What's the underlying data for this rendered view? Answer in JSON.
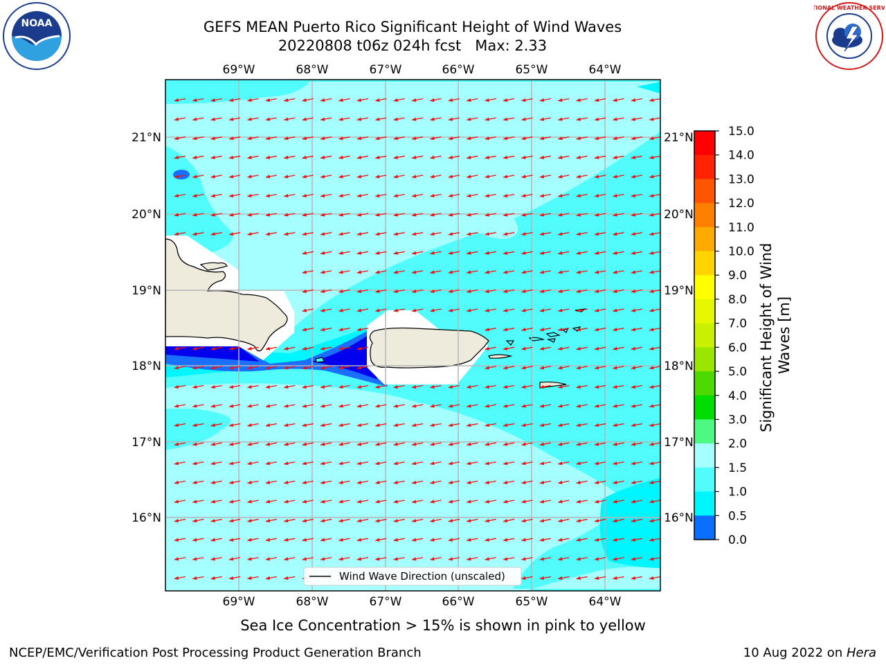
{
  "title": {
    "line1": "GEFS MEAN Puerto Rico Significant Height of Wind Waves",
    "line2": "20220808 t06z 024h fcst   Max: 2.33"
  },
  "map": {
    "lon_ticks": [
      "69°W",
      "68°W",
      "67°W",
      "66°W",
      "65°W",
      "64°W"
    ],
    "lat_ticks": [
      "21°N",
      "20°N",
      "19°N",
      "18°N",
      "17°N",
      "16°N"
    ],
    "legend_label": "Wind Wave Direction (unscaled)",
    "arrow_direction": "toward west-southwest",
    "colors": {
      "ocean_light": "#a6ffff",
      "ocean_mid": "#50fcfc",
      "ocean_bright": "#00f6ff",
      "ocean_blue": "#1a6fff",
      "ocean_deep": "#0000ee",
      "land": "#efebdc",
      "arrow": "#ee1111"
    }
  },
  "colorbar": {
    "label": "Significant Height of Wind Waves [m]",
    "ticks": [
      "15.0",
      "14.0",
      "13.0",
      "12.0",
      "11.0",
      "10.0",
      "9.0",
      "8.0",
      "7.0",
      "6.0",
      "5.0",
      "4.0",
      "3.0",
      "2.0",
      "1.5",
      "1.0",
      "0.5",
      "0.0"
    ],
    "colors_top_to_bottom": [
      "#ff0000",
      "#ff2200",
      "#ff5500",
      "#ff7f00",
      "#ffaa00",
      "#ffd400",
      "#ffff00",
      "#e5f800",
      "#c8f000",
      "#9be600",
      "#4cd800",
      "#00dd00",
      "#4dfa80",
      "#a6ffff",
      "#50fcfc",
      "#00f6ff",
      "#0a6fff",
      "#0000ff"
    ]
  },
  "note": "Sea Ice Concentration > 15% is shown in pink to yellow",
  "footer": {
    "left": "NCEP/EMC/Verification Post Processing Product Generation Branch",
    "right_prefix": "10 Aug 2022 on ",
    "right_host": "Hera"
  },
  "logos": {
    "noaa_text": "NOAA",
    "nws_text": "NATIONAL WEATHER SERVICE"
  }
}
